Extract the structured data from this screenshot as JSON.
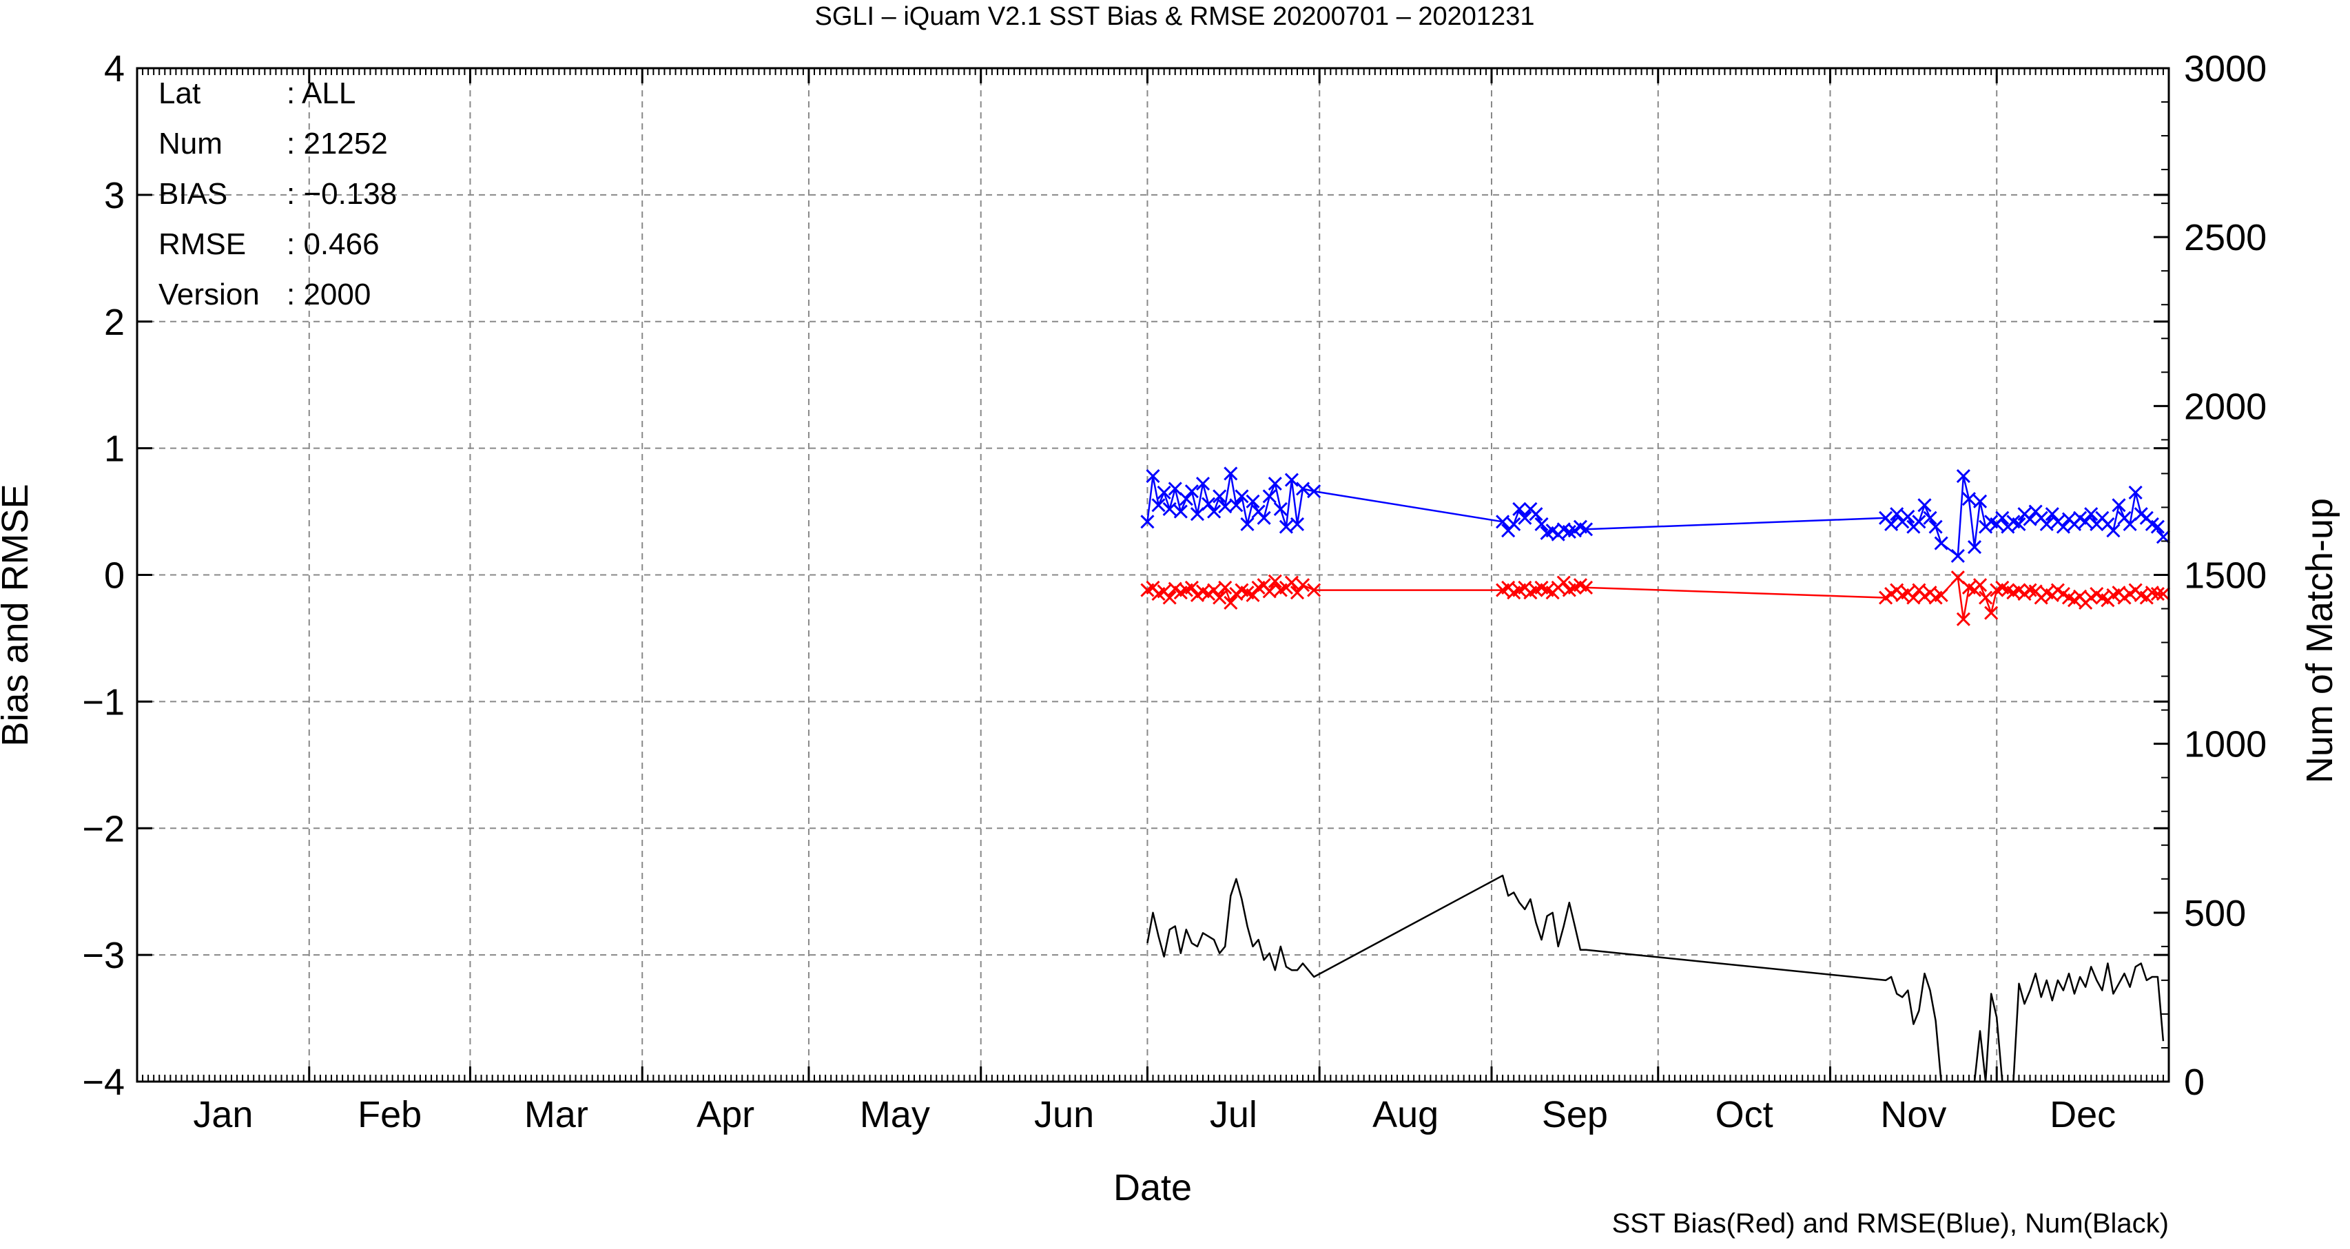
{
  "chart_data": {
    "type": "line",
    "title": "SGLI – iQuam V2.1 SST Bias & RMSE 20200701 – 20201231",
    "xlabel": "Date",
    "ylabel_left": "Bias and RMSE",
    "ylabel_right": "Num of Match-up",
    "footer": "SST Bias(Red) and RMSE(Blue), Num(Black)",
    "x_tick_labels": [
      "Jan",
      "Feb",
      "Mar",
      "Apr",
      "May",
      "Jun",
      "Jul",
      "Aug",
      "Sep",
      "Oct",
      "Nov",
      "Dec"
    ],
    "y_left_tick_labels": [
      "4",
      "3",
      "2",
      "1",
      "0",
      "−1",
      "−2",
      "−3",
      "−4"
    ],
    "y_right_tick_labels": [
      "3000",
      "2500",
      "2000",
      "1500",
      "1000",
      "500",
      "0"
    ],
    "ylim_left": [
      -4,
      4
    ],
    "ylim_right": [
      0,
      3000
    ],
    "xlim_day_of_year": [
      1,
      366
    ],
    "grid": true,
    "info": [
      {
        "key": "Lat",
        "value": ": ALL"
      },
      {
        "key": "Num",
        "value": ": 21252"
      },
      {
        "key": "BIAS",
        "value": ": −0.138"
      },
      {
        "key": "RMSE",
        "value": ": 0.466"
      },
      {
        "key": "Version",
        "value": ": 2000"
      }
    ],
    "x_dates": [
      "2020-07-01",
      "2020-07-02",
      "2020-07-03",
      "2020-07-04",
      "2020-07-05",
      "2020-07-06",
      "2020-07-07",
      "2020-07-08",
      "2020-07-09",
      "2020-07-10",
      "2020-07-11",
      "2020-07-12",
      "2020-07-13",
      "2020-07-14",
      "2020-07-15",
      "2020-07-16",
      "2020-07-17",
      "2020-07-18",
      "2020-07-19",
      "2020-07-20",
      "2020-07-21",
      "2020-07-22",
      "2020-07-23",
      "2020-07-24",
      "2020-07-25",
      "2020-07-26",
      "2020-07-27",
      "2020-07-28",
      "2020-07-29",
      "2020-07-31",
      "2020-09-03",
      "2020-09-04",
      "2020-09-05",
      "2020-09-06",
      "2020-09-07",
      "2020-09-08",
      "2020-09-09",
      "2020-09-10",
      "2020-09-11",
      "2020-09-12",
      "2020-09-13",
      "2020-09-14",
      "2020-09-15",
      "2020-09-16",
      "2020-09-17",
      "2020-09-18",
      "2020-11-11",
      "2020-11-12",
      "2020-11-13",
      "2020-11-14",
      "2020-11-15",
      "2020-11-16",
      "2020-11-17",
      "2020-11-18",
      "2020-11-19",
      "2020-11-20",
      "2020-11-21",
      "2020-11-24",
      "2020-11-25",
      "2020-11-26",
      "2020-11-27",
      "2020-11-28",
      "2020-11-29",
      "2020-11-30",
      "2020-12-01",
      "2020-12-02",
      "2020-12-03",
      "2020-12-04",
      "2020-12-05",
      "2020-12-06",
      "2020-12-07",
      "2020-12-08",
      "2020-12-09",
      "2020-12-10",
      "2020-12-11",
      "2020-12-12",
      "2020-12-13",
      "2020-12-14",
      "2020-12-15",
      "2020-12-16",
      "2020-12-17",
      "2020-12-18",
      "2020-12-19",
      "2020-12-20",
      "2020-12-21",
      "2020-12-22",
      "2020-12-23",
      "2020-12-24",
      "2020-12-25",
      "2020-12-26",
      "2020-12-27",
      "2020-12-28",
      "2020-12-29",
      "2020-12-30",
      "2020-12-31"
    ],
    "series": [
      {
        "name": "RMSE",
        "color": "#0000ff",
        "axis": "left",
        "marker": "x",
        "values": [
          0.42,
          0.78,
          0.55,
          0.65,
          0.52,
          0.68,
          0.5,
          0.6,
          0.66,
          0.48,
          0.72,
          0.56,
          0.5,
          0.62,
          0.54,
          0.8,
          0.55,
          0.62,
          0.4,
          0.58,
          0.5,
          0.45,
          0.62,
          0.72,
          0.52,
          0.38,
          0.75,
          0.4,
          0.68,
          0.66,
          0.42,
          0.35,
          0.4,
          0.52,
          0.45,
          0.52,
          0.48,
          0.4,
          0.33,
          0.35,
          0.32,
          0.36,
          0.34,
          0.35,
          0.38,
          0.36,
          0.45,
          0.4,
          0.48,
          0.42,
          0.46,
          0.38,
          0.42,
          0.55,
          0.45,
          0.38,
          0.25,
          0.15,
          0.78,
          0.6,
          0.22,
          0.58,
          0.38,
          0.42,
          0.4,
          0.45,
          0.38,
          0.42,
          0.4,
          0.48,
          0.44,
          0.5,
          0.45,
          0.4,
          0.48,
          0.42,
          0.38,
          0.44,
          0.4,
          0.45,
          0.42,
          0.48,
          0.4,
          0.45,
          0.4,
          0.35,
          0.55,
          0.45,
          0.4,
          0.65,
          0.48,
          0.45,
          0.4,
          0.38,
          0.3
        ]
      },
      {
        "name": "Bias",
        "color": "#ff0000",
        "axis": "left",
        "marker": "x",
        "values": [
          -0.12,
          -0.1,
          -0.15,
          -0.13,
          -0.18,
          -0.11,
          -0.14,
          -0.12,
          -0.1,
          -0.16,
          -0.13,
          -0.15,
          -0.12,
          -0.18,
          -0.1,
          -0.22,
          -0.15,
          -0.12,
          -0.14,
          -0.16,
          -0.1,
          -0.08,
          -0.13,
          -0.05,
          -0.12,
          -0.1,
          -0.06,
          -0.14,
          -0.08,
          -0.12,
          -0.12,
          -0.1,
          -0.14,
          -0.12,
          -0.1,
          -0.14,
          -0.12,
          -0.1,
          -0.12,
          -0.14,
          -0.1,
          -0.06,
          -0.12,
          -0.1,
          -0.08,
          -0.1,
          -0.18,
          -0.15,
          -0.12,
          -0.16,
          -0.14,
          -0.18,
          -0.12,
          -0.17,
          -0.14,
          -0.18,
          -0.16,
          -0.02,
          -0.35,
          -0.1,
          -0.12,
          -0.08,
          -0.18,
          -0.3,
          -0.12,
          -0.1,
          -0.12,
          -0.14,
          -0.12,
          -0.15,
          -0.12,
          -0.13,
          -0.18,
          -0.14,
          -0.16,
          -0.12,
          -0.15,
          -0.18,
          -0.2,
          -0.17,
          -0.22,
          -0.18,
          -0.15,
          -0.18,
          -0.2,
          -0.16,
          -0.14,
          -0.18,
          -0.15,
          -0.12,
          -0.16,
          -0.18,
          -0.14,
          -0.15,
          -0.15
        ]
      },
      {
        "name": "Num",
        "color": "#000000",
        "axis": "right",
        "marker": "none",
        "values": [
          410,
          500,
          430,
          370,
          450,
          460,
          380,
          450,
          410,
          400,
          440,
          430,
          420,
          380,
          400,
          550,
          600,
          540,
          460,
          400,
          420,
          360,
          380,
          330,
          400,
          340,
          330,
          330,
          350,
          310,
          610,
          550,
          560,
          530,
          510,
          540,
          470,
          420,
          490,
          500,
          400,
          460,
          530,
          460,
          390,
          390,
          300,
          310,
          260,
          250,
          270,
          170,
          210,
          320,
          270,
          180,
          0,
          0,
          0,
          0,
          0,
          150,
          0,
          260,
          190,
          0,
          0,
          0,
          290,
          230,
          270,
          320,
          250,
          300,
          240,
          300,
          270,
          320,
          260,
          310,
          280,
          340,
          300,
          270,
          350,
          260,
          290,
          320,
          280,
          340,
          350,
          300,
          310,
          310,
          120
        ]
      }
    ]
  }
}
